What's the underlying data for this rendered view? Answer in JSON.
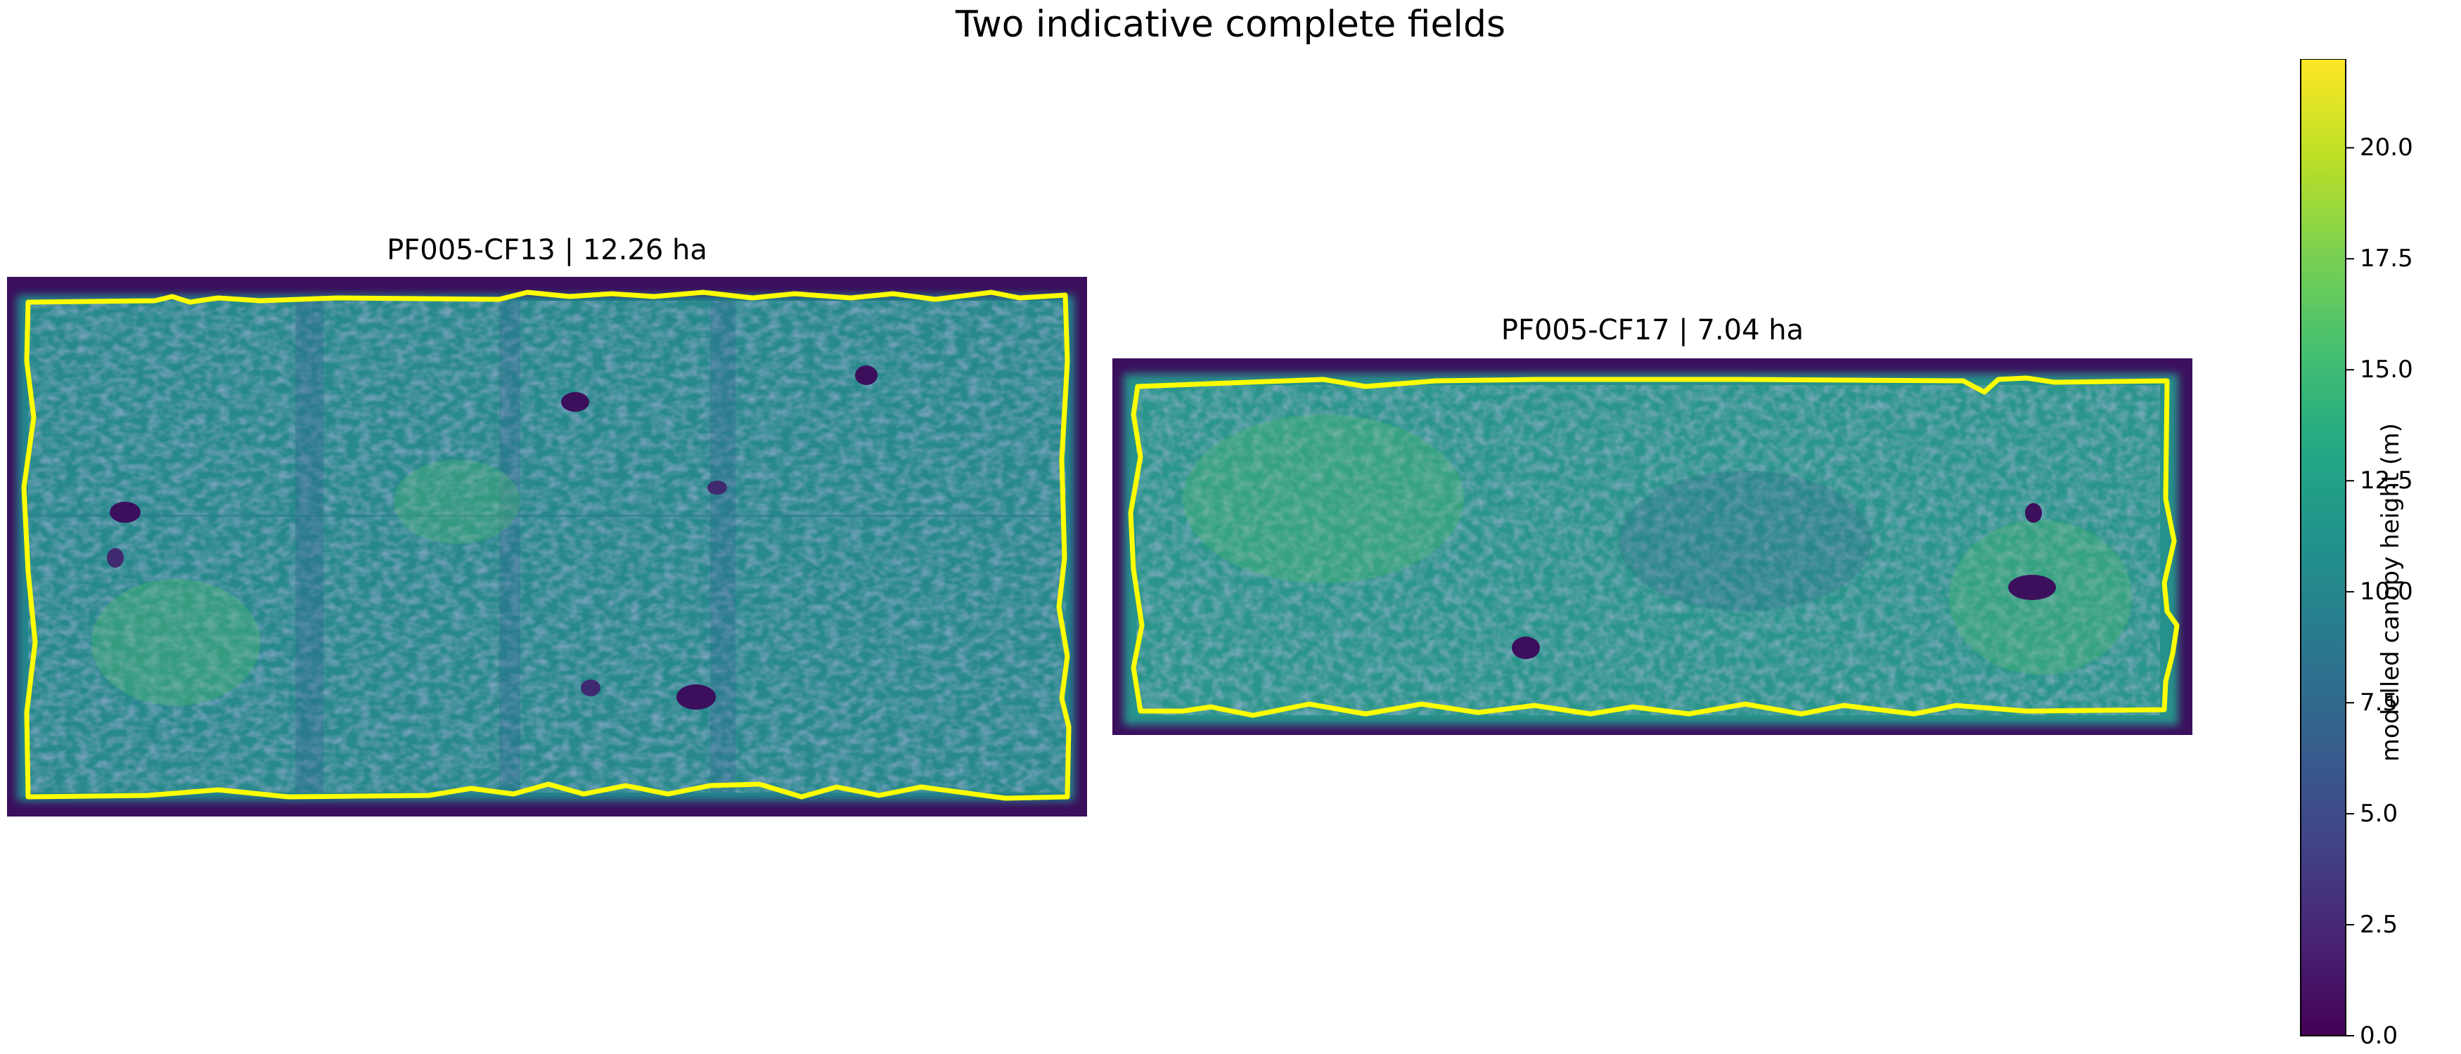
{
  "title": "Two indicative complete fields",
  "chart_data": {
    "type": "heatmap",
    "title": "Two indicative complete fields",
    "panels": [
      {
        "title": "PF005-CF13 | 12.26 ha",
        "field_id": "PF005-CF13",
        "area_ha": 12.26
      },
      {
        "title": "PF005-CF17 | 7.04 ha",
        "field_id": "PF005-CF17",
        "area_ha": 7.04
      }
    ],
    "boundary_color": "#ffff00",
    "colormap": "viridis",
    "colorbar": {
      "label": "modelled canopy height (m)",
      "range": [
        0,
        22
      ],
      "ticks": [
        0.0,
        2.5,
        5.0,
        7.5,
        10.0,
        12.5,
        15.0,
        17.5,
        20.0
      ],
      "tick_labels": [
        "0.0",
        "2.5",
        "5.0",
        "7.5",
        "10.0",
        "12.5",
        "15.0",
        "17.5",
        "20.0"
      ]
    }
  }
}
